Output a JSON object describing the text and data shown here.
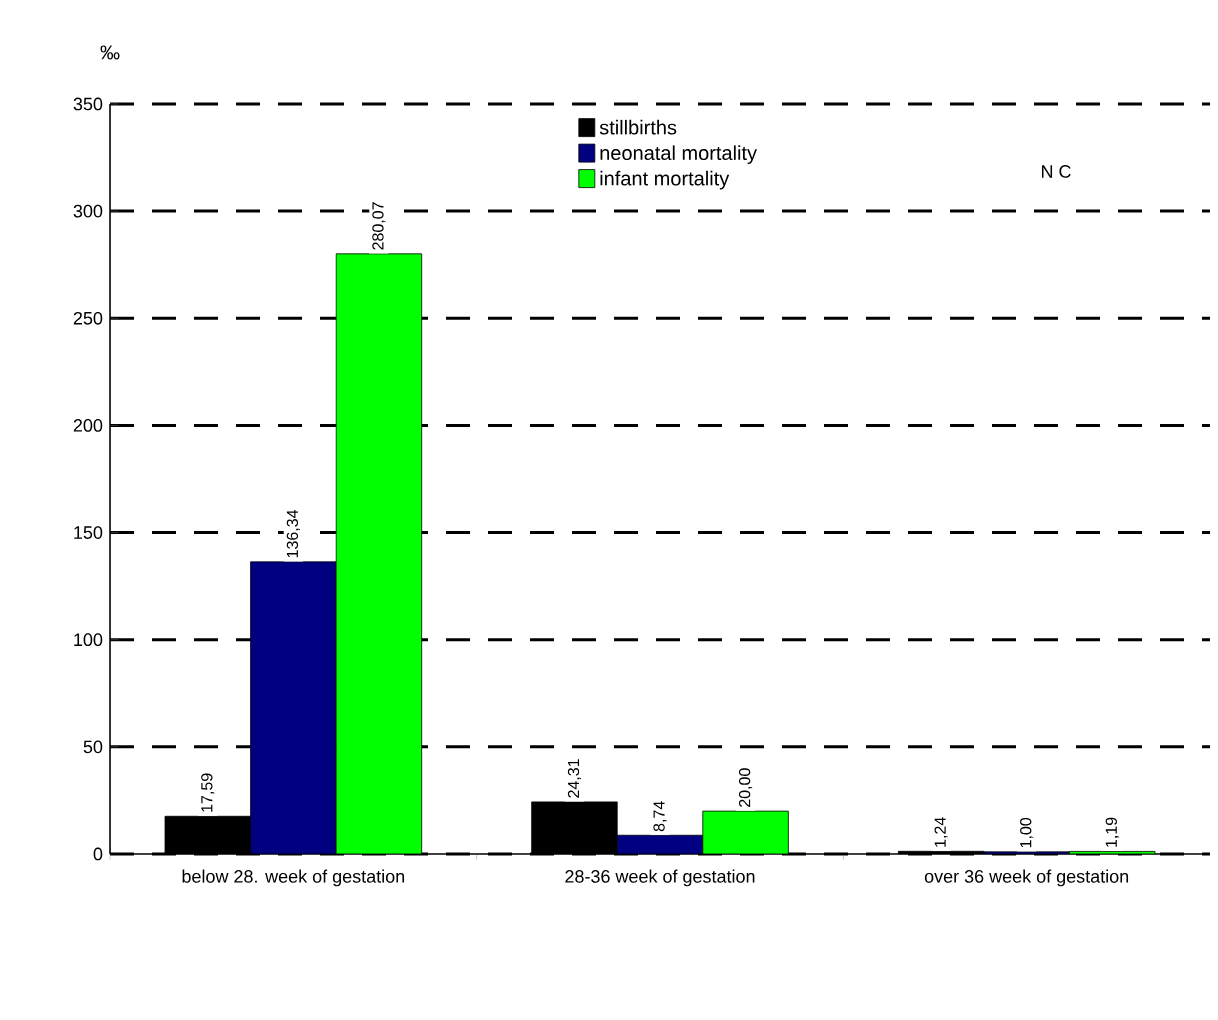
{
  "chart_data": {
    "type": "bar",
    "ylabel": "‰",
    "categories": [
      "below 28. week of gestation",
      "28-36 week of gestation",
      "over 36 week of gestation"
    ],
    "series": [
      {
        "name": "stillbirths",
        "color": "#000000",
        "values": [
          17.59,
          24.31,
          1.24
        ],
        "value_labels": [
          "17,59",
          "24,31",
          "1,24"
        ]
      },
      {
        "name": "neonatal mortality",
        "color": "#000080",
        "values": [
          136.34,
          8.74,
          1.0
        ],
        "value_labels": [
          "136,34",
          "8,74",
          "1,00"
        ]
      },
      {
        "name": "infant mortality",
        "color": "#00ff00",
        "values": [
          280.07,
          20.0,
          1.19
        ],
        "value_labels": [
          "280,07",
          "20,00",
          "1,19"
        ]
      }
    ],
    "ylim": [
      0,
      350
    ],
    "yticks": [
      0,
      50,
      100,
      150,
      200,
      250,
      300,
      350
    ],
    "grid": "y",
    "legend": "top",
    "annotations": [
      "N C"
    ]
  }
}
